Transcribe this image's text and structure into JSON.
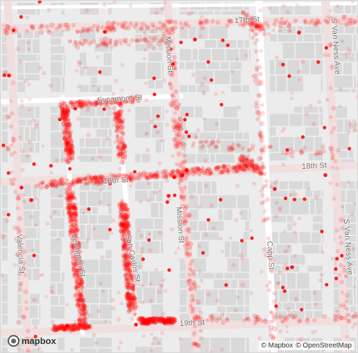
{
  "map": {
    "streets": {
      "st17": "17th St",
      "st18_east": "18th St",
      "st18_west": "18th St",
      "st19": "19th St",
      "sycamore": "Sycamore St",
      "mission_north": "Mission St",
      "mission_south": "Mission St",
      "valencia": "Valencia St",
      "lexington": "Lexington St",
      "san_carlos": "San Carlos St",
      "capp": "Capp St",
      "van_ness_north": "S Van Ness Ave",
      "van_ness_south": "S Van Ness Ave"
    },
    "colors": {
      "background": "#ececec",
      "block": "#d9d9d9",
      "road": "#ffffff",
      "arterial": "#f1dede",
      "point": "#ff0000"
    },
    "point_layer": "red semi-transparent event points concentrated along Lexington St, San Carlos St, Sycamore St, 18th St and 19th St alleys"
  },
  "logo": {
    "text": "mapbox",
    "icon": "mapbox-logo-icon"
  },
  "attribution": {
    "mapbox": "© Mapbox",
    "osm": "© OpenStreetMap"
  }
}
